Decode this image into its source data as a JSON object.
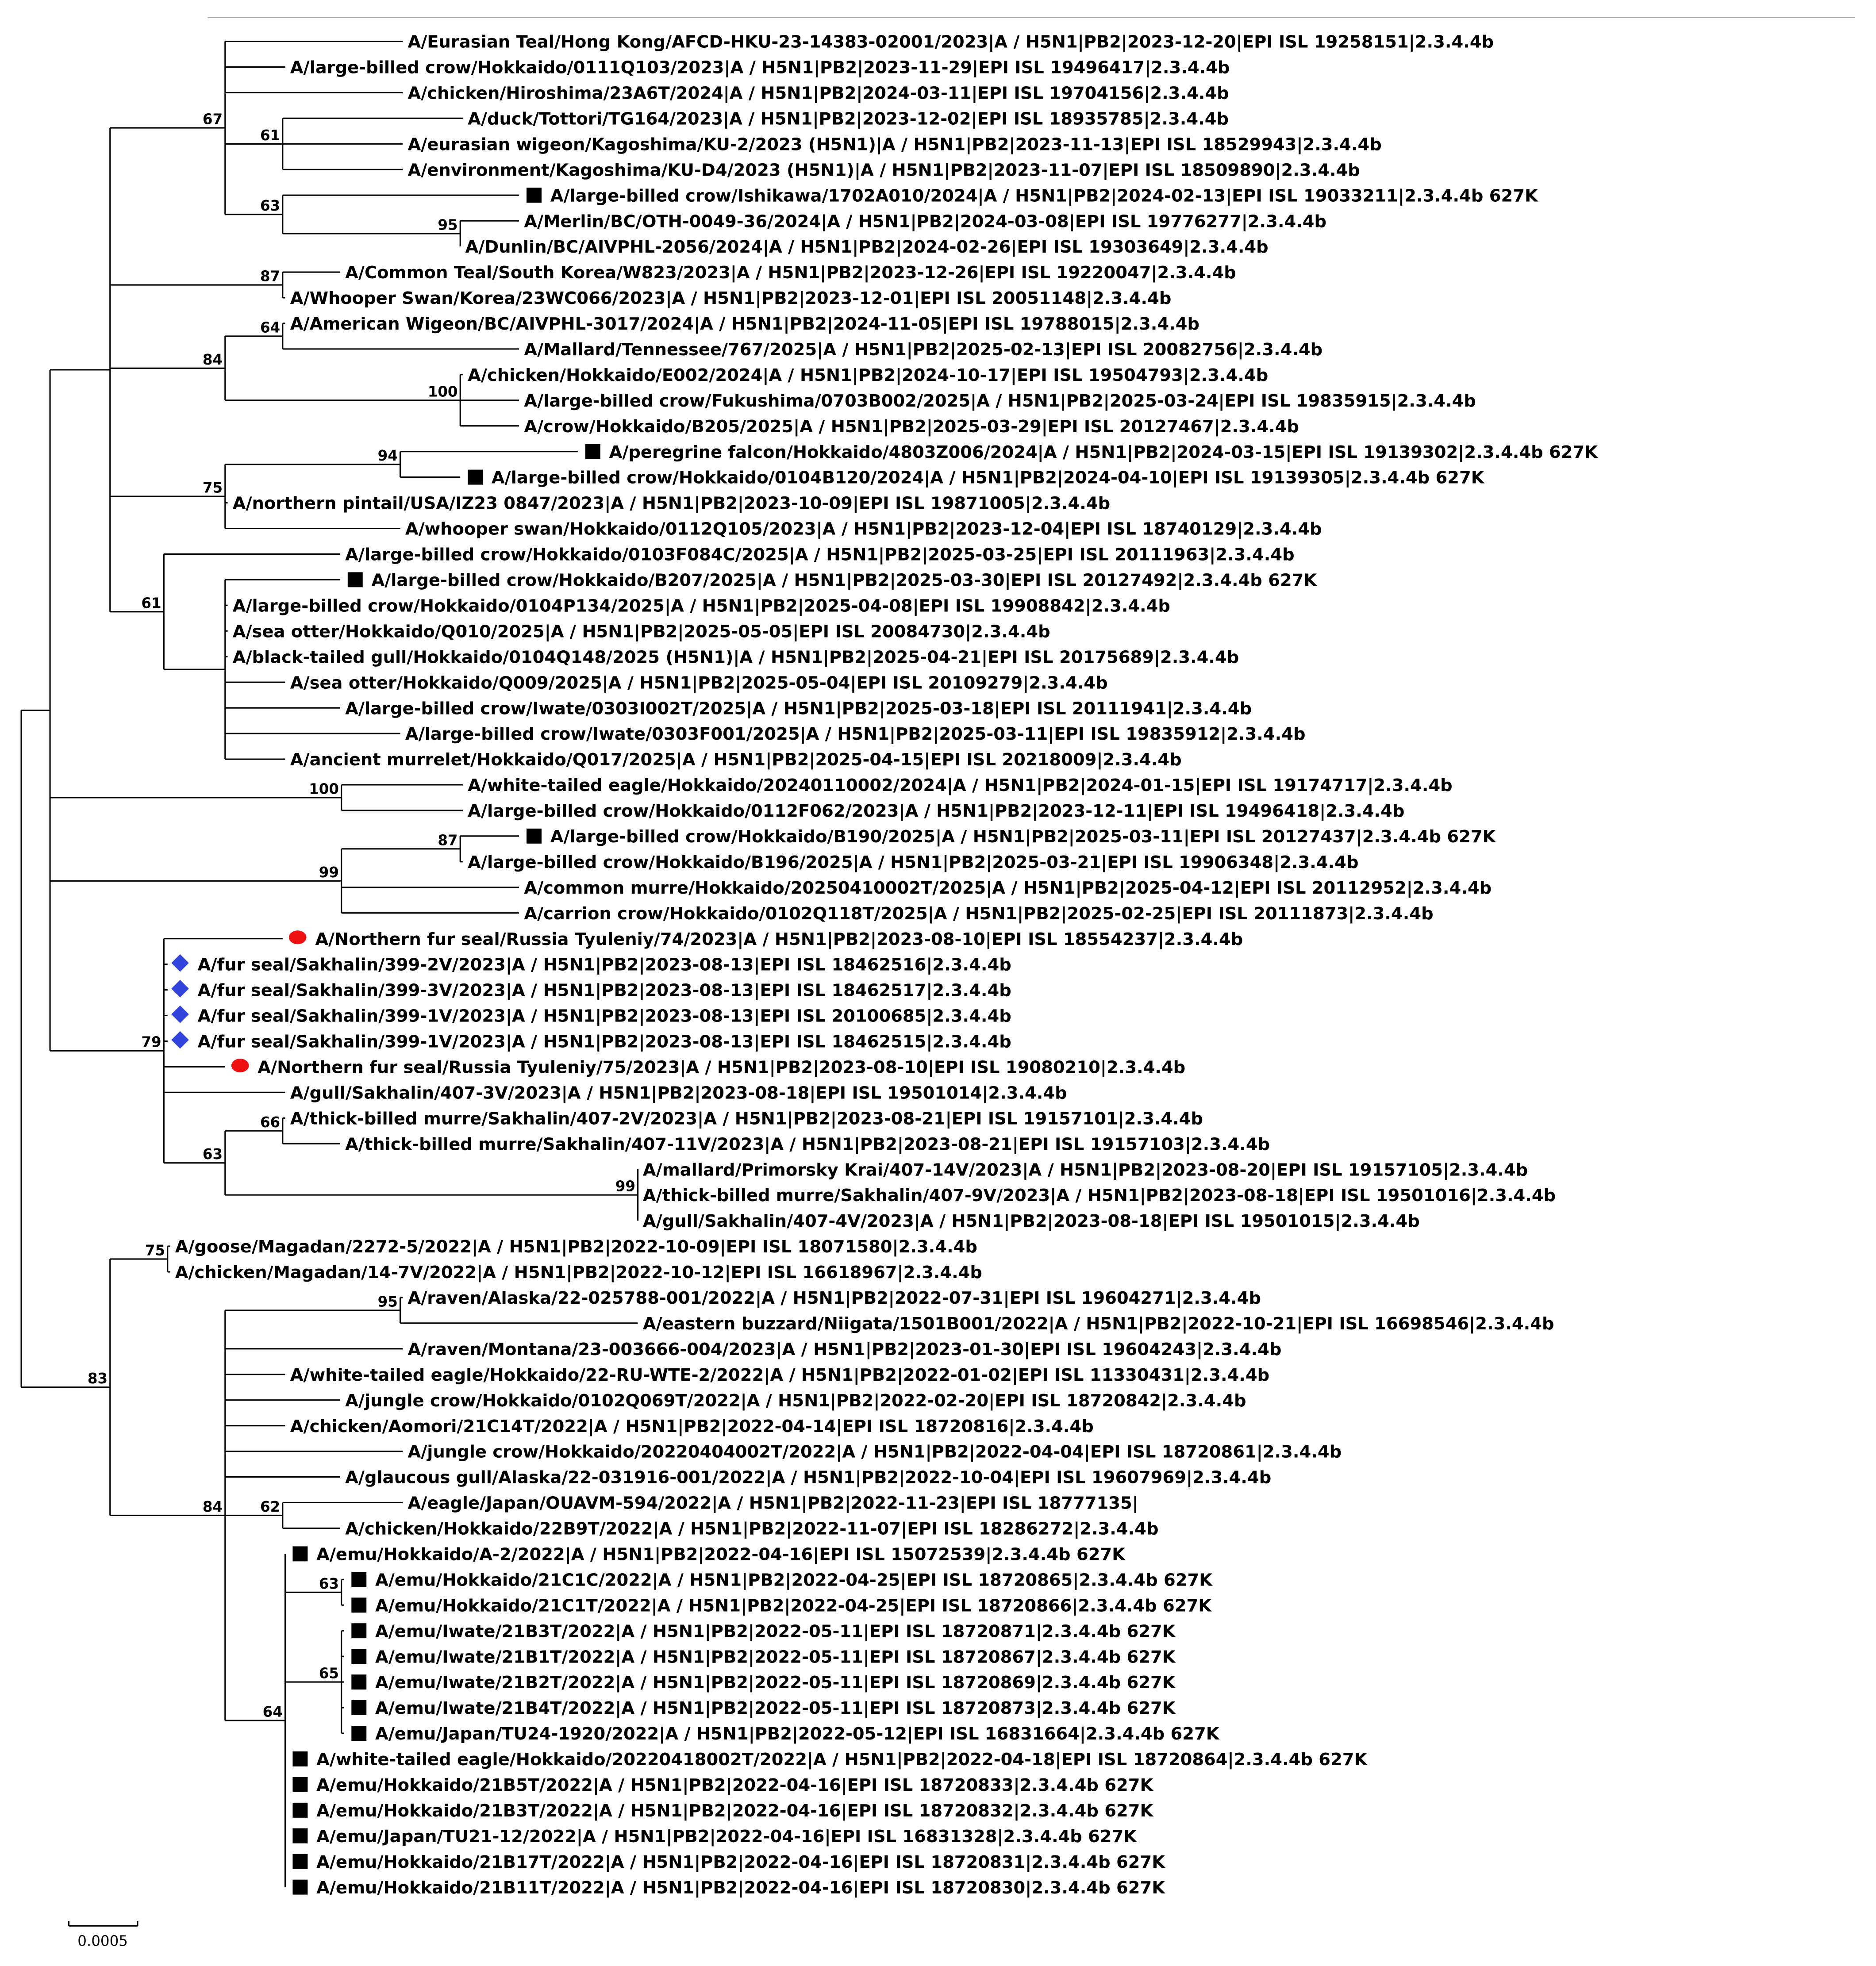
{
  "colors": {
    "branch": "#000000",
    "square_marker": "#000000",
    "circle_marker": "#ee1111",
    "diamond_marker": "#3344dd"
  },
  "leaves": [
    {
      "label": "A/Eurasian Teal/Hong Kong/AFCD-HKU-23-14383-02001/2023|A / H5N1|PB2|2023-12-20|EPI ISL 19258151|2.3.4.4b",
      "marker": "none"
    },
    {
      "label": "A/large-billed crow/Hokkaido/0111Q103/2023|A / H5N1|PB2|2023-11-29|EPI ISL 19496417|2.3.4.4b",
      "marker": "none"
    },
    {
      "label": "A/chicken/Hiroshima/23A6T/2024|A / H5N1|PB2|2024-03-11|EPI ISL 19704156|2.3.4.4b",
      "marker": "none"
    },
    {
      "label": "A/duck/Tottori/TG164/2023|A / H5N1|PB2|2023-12-02|EPI ISL 18935785|2.3.4.4b",
      "marker": "none"
    },
    {
      "label": "A/eurasian wigeon/Kagoshima/KU-2/2023 (H5N1)|A / H5N1|PB2|2023-11-13|EPI ISL 18529943|2.3.4.4b",
      "marker": "none"
    },
    {
      "label": "A/environment/Kagoshima/KU-D4/2023 (H5N1)|A / H5N1|PB2|2023-11-07|EPI ISL 18509890|2.3.4.4b",
      "marker": "none"
    },
    {
      "label": "A/large-billed crow/Ishikawa/1702A010/2024|A / H5N1|PB2|2024-02-13|EPI ISL 19033211|2.3.4.4b 627K",
      "marker": "square"
    },
    {
      "label": "A/Merlin/BC/OTH-0049-36/2024|A / H5N1|PB2|2024-03-08|EPI ISL 19776277|2.3.4.4b",
      "marker": "none"
    },
    {
      "label": "A/Dunlin/BC/AIVPHL-2056/2024|A / H5N1|PB2|2024-02-26|EPI ISL 19303649|2.3.4.4b",
      "marker": "none"
    },
    {
      "label": "A/Common Teal/South Korea/W823/2023|A / H5N1|PB2|2023-12-26|EPI ISL 19220047|2.3.4.4b",
      "marker": "none"
    },
    {
      "label": "A/Whooper Swan/Korea/23WC066/2023|A / H5N1|PB2|2023-12-01|EPI ISL 20051148|2.3.4.4b",
      "marker": "none"
    },
    {
      "label": "A/American Wigeon/BC/AIVPHL-3017/2024|A / H5N1|PB2|2024-11-05|EPI ISL 19788015|2.3.4.4b",
      "marker": "none"
    },
    {
      "label": "A/Mallard/Tennessee/767/2025|A / H5N1|PB2|2025-02-13|EPI ISL 20082756|2.3.4.4b",
      "marker": "none"
    },
    {
      "label": "A/chicken/Hokkaido/E002/2024|A / H5N1|PB2|2024-10-17|EPI ISL 19504793|2.3.4.4b",
      "marker": "none"
    },
    {
      "label": "A/large-billed crow/Fukushima/0703B002/2025|A / H5N1|PB2|2025-03-24|EPI ISL 19835915|2.3.4.4b",
      "marker": "none"
    },
    {
      "label": "A/crow/Hokkaido/B205/2025|A / H5N1|PB2|2025-03-29|EPI ISL 20127467|2.3.4.4b",
      "marker": "none"
    },
    {
      "label": "A/peregrine falcon/Hokkaido/4803Z006/2024|A / H5N1|PB2|2024-03-15|EPI ISL 19139302|2.3.4.4b 627K",
      "marker": "square"
    },
    {
      "label": "A/large-billed crow/Hokkaido/0104B120/2024|A / H5N1|PB2|2024-04-10|EPI ISL 19139305|2.3.4.4b 627K",
      "marker": "square"
    },
    {
      "label": "A/northern pintail/USA/IZ23 0847/2023|A / H5N1|PB2|2023-10-09|EPI ISL 19871005|2.3.4.4b",
      "marker": "none"
    },
    {
      "label": "A/whooper swan/Hokkaido/0112Q105/2023|A / H5N1|PB2|2023-12-04|EPI ISL 18740129|2.3.4.4b",
      "marker": "none"
    },
    {
      "label": "A/large-billed crow/Hokkaido/0103F084C/2025|A / H5N1|PB2|2025-03-25|EPI ISL 20111963|2.3.4.4b",
      "marker": "none"
    },
    {
      "label": "A/large-billed crow/Hokkaido/B207/2025|A / H5N1|PB2|2025-03-30|EPI ISL 20127492|2.3.4.4b 627K",
      "marker": "square"
    },
    {
      "label": "A/large-billed crow/Hokkaido/0104P134/2025|A / H5N1|PB2|2025-04-08|EPI ISL 19908842|2.3.4.4b",
      "marker": "none"
    },
    {
      "label": "A/sea otter/Hokkaido/Q010/2025|A / H5N1|PB2|2025-05-05|EPI ISL 20084730|2.3.4.4b",
      "marker": "none"
    },
    {
      "label": "A/black-tailed gull/Hokkaido/0104Q148/2025 (H5N1)|A / H5N1|PB2|2025-04-21|EPI ISL 20175689|2.3.4.4b",
      "marker": "none"
    },
    {
      "label": "A/sea otter/Hokkaido/Q009/2025|A / H5N1|PB2|2025-05-04|EPI ISL 20109279|2.3.4.4b",
      "marker": "none"
    },
    {
      "label": "A/large-billed crow/Iwate/0303I002T/2025|A / H5N1|PB2|2025-03-18|EPI ISL 20111941|2.3.4.4b",
      "marker": "none"
    },
    {
      "label": "A/large-billed crow/Iwate/0303F001/2025|A / H5N1|PB2|2025-03-11|EPI ISL 19835912|2.3.4.4b",
      "marker": "none"
    },
    {
      "label": "A/ancient murrelet/Hokkaido/Q017/2025|A / H5N1|PB2|2025-04-15|EPI ISL 20218009|2.3.4.4b",
      "marker": "none"
    },
    {
      "label": "A/white-tailed eagle/Hokkaido/20240110002/2024|A / H5N1|PB2|2024-01-15|EPI ISL 19174717|2.3.4.4b",
      "marker": "none"
    },
    {
      "label": "A/large-billed crow/Hokkaido/0112F062/2023|A / H5N1|PB2|2023-12-11|EPI ISL 19496418|2.3.4.4b",
      "marker": "none"
    },
    {
      "label": "A/large-billed crow/Hokkaido/B190/2025|A / H5N1|PB2|2025-03-11|EPI ISL 20127437|2.3.4.4b 627K",
      "marker": "square"
    },
    {
      "label": "A/large-billed crow/Hokkaido/B196/2025|A / H5N1|PB2|2025-03-21|EPI ISL 19906348|2.3.4.4b",
      "marker": "none"
    },
    {
      "label": "A/common murre/Hokkaido/20250410002T/2025|A / H5N1|PB2|2025-04-12|EPI ISL 20112952|2.3.4.4b",
      "marker": "none"
    },
    {
      "label": "A/carrion crow/Hokkaido/0102Q118T/2025|A / H5N1|PB2|2025-02-25|EPI ISL 20111873|2.3.4.4b",
      "marker": "none"
    },
    {
      "label": "A/Northern fur seal/Russia Tyuleniy/74/2023|A / H5N1|PB2|2023-08-10|EPI ISL 18554237|2.3.4.4b",
      "marker": "circle"
    },
    {
      "label": "A/fur seal/Sakhalin/399-2V/2023|A / H5N1|PB2|2023-08-13|EPI ISL 18462516|2.3.4.4b",
      "marker": "diamond"
    },
    {
      "label": "A/fur seal/Sakhalin/399-3V/2023|A / H5N1|PB2|2023-08-13|EPI ISL 18462517|2.3.4.4b",
      "marker": "diamond"
    },
    {
      "label": "A/fur seal/Sakhalin/399-1V/2023|A / H5N1|PB2|2023-08-13|EPI ISL 20100685|2.3.4.4b",
      "marker": "diamond"
    },
    {
      "label": "A/fur seal/Sakhalin/399-1V/2023|A / H5N1|PB2|2023-08-13|EPI ISL 18462515|2.3.4.4b",
      "marker": "diamond"
    },
    {
      "label": "A/Northern fur seal/Russia Tyuleniy/75/2023|A / H5N1|PB2|2023-08-10|EPI ISL 19080210|2.3.4.4b",
      "marker": "circle"
    },
    {
      "label": "A/gull/Sakhalin/407-3V/2023|A / H5N1|PB2|2023-08-18|EPI ISL 19501014|2.3.4.4b",
      "marker": "none"
    },
    {
      "label": "A/thick-billed murre/Sakhalin/407-2V/2023|A / H5N1|PB2|2023-08-21|EPI ISL 19157101|2.3.4.4b",
      "marker": "none"
    },
    {
      "label": "A/thick-billed murre/Sakhalin/407-11V/2023|A / H5N1|PB2|2023-08-21|EPI ISL 19157103|2.3.4.4b",
      "marker": "none"
    },
    {
      "label": "A/mallard/Primorsky Krai/407-14V/2023|A / H5N1|PB2|2023-08-20|EPI ISL 19157105|2.3.4.4b",
      "marker": "none"
    },
    {
      "label": "A/thick-billed murre/Sakhalin/407-9V/2023|A / H5N1|PB2|2023-08-18|EPI ISL 19501016|2.3.4.4b",
      "marker": "none"
    },
    {
      "label": "A/gull/Sakhalin/407-4V/2023|A / H5N1|PB2|2023-08-18|EPI ISL 19501015|2.3.4.4b",
      "marker": "none"
    },
    {
      "label": "A/goose/Magadan/2272-5/2022|A / H5N1|PB2|2022-10-09|EPI ISL 18071580|2.3.4.4b",
      "marker": "none"
    },
    {
      "label": "A/chicken/Magadan/14-7V/2022|A / H5N1|PB2|2022-10-12|EPI ISL 16618967|2.3.4.4b",
      "marker": "none"
    },
    {
      "label": "A/raven/Alaska/22-025788-001/2022|A / H5N1|PB2|2022-07-31|EPI ISL 19604271|2.3.4.4b",
      "marker": "none"
    },
    {
      "label": "A/eastern buzzard/Niigata/1501B001/2022|A / H5N1|PB2|2022-10-21|EPI ISL 16698546|2.3.4.4b",
      "marker": "none"
    },
    {
      "label": "A/raven/Montana/23-003666-004/2023|A / H5N1|PB2|2023-01-30|EPI ISL 19604243|2.3.4.4b",
      "marker": "none"
    },
    {
      "label": "A/white-tailed eagle/Hokkaido/22-RU-WTE-2/2022|A / H5N1|PB2|2022-01-02|EPI ISL 11330431|2.3.4.4b",
      "marker": "none"
    },
    {
      "label": "A/jungle crow/Hokkaido/0102Q069T/2022|A / H5N1|PB2|2022-02-20|EPI ISL 18720842|2.3.4.4b",
      "marker": "none"
    },
    {
      "label": "A/chicken/Aomori/21C14T/2022|A / H5N1|PB2|2022-04-14|EPI ISL 18720816|2.3.4.4b",
      "marker": "none"
    },
    {
      "label": "A/jungle crow/Hokkaido/20220404002T/2022|A / H5N1|PB2|2022-04-04|EPI ISL 18720861|2.3.4.4b",
      "marker": "none"
    },
    {
      "label": "A/glaucous gull/Alaska/22-031916-001/2022|A / H5N1|PB2|2022-10-04|EPI ISL 19607969|2.3.4.4b",
      "marker": "none"
    },
    {
      "label": "A/eagle/Japan/OUAVM-594/2022|A / H5N1|PB2|2022-11-23|EPI ISL 18777135|",
      "marker": "none"
    },
    {
      "label": "A/chicken/Hokkaido/22B9T/2022|A / H5N1|PB2|2022-11-07|EPI ISL 18286272|2.3.4.4b",
      "marker": "none"
    },
    {
      "label": "A/emu/Hokkaido/A-2/2022|A / H5N1|PB2|2022-04-16|EPI ISL 15072539|2.3.4.4b 627K",
      "marker": "square"
    },
    {
      "label": "A/emu/Hokkaido/21C1C/2022|A / H5N1|PB2|2022-04-25|EPI ISL 18720865|2.3.4.4b 627K",
      "marker": "square"
    },
    {
      "label": "A/emu/Hokkaido/21C1T/2022|A / H5N1|PB2|2022-04-25|EPI ISL 18720866|2.3.4.4b 627K",
      "marker": "square"
    },
    {
      "label": "A/emu/Iwate/21B3T/2022|A / H5N1|PB2|2022-05-11|EPI ISL 18720871|2.3.4.4b 627K",
      "marker": "square"
    },
    {
      "label": "A/emu/Iwate/21B1T/2022|A / H5N1|PB2|2022-05-11|EPI ISL 18720867|2.3.4.4b 627K",
      "marker": "square"
    },
    {
      "label": "A/emu/Iwate/21B2T/2022|A / H5N1|PB2|2022-05-11|EPI ISL 18720869|2.3.4.4b 627K",
      "marker": "square"
    },
    {
      "label": "A/emu/Iwate/21B4T/2022|A / H5N1|PB2|2022-05-11|EPI ISL 18720873|2.3.4.4b 627K",
      "marker": "square"
    },
    {
      "label": "A/emu/Japan/TU24-1920/2022|A / H5N1|PB2|2022-05-12|EPI ISL 16831664|2.3.4.4b 627K",
      "marker": "square"
    },
    {
      "label": "A/white-tailed eagle/Hokkaido/20220418002T/2022|A / H5N1|PB2|2022-04-18|EPI ISL 18720864|2.3.4.4b 627K",
      "marker": "square"
    },
    {
      "label": "A/emu/Hokkaido/21B5T/2022|A / H5N1|PB2|2022-04-16|EPI ISL 18720833|2.3.4.4b 627K",
      "marker": "square"
    },
    {
      "label": "A/emu/Hokkaido/21B3T/2022|A / H5N1|PB2|2022-04-16|EPI ISL 18720832|2.3.4.4b 627K",
      "marker": "square"
    },
    {
      "label": "A/emu/Japan/TU21-12/2022|A / H5N1|PB2|2022-04-16|EPI ISL 16831328|2.3.4.4b 627K",
      "marker": "square"
    },
    {
      "label": "A/emu/Hokkaido/21B17T/2022|A / H5N1|PB2|2022-04-16|EPI ISL 18720831|2.3.4.4b 627K",
      "marker": "square"
    },
    {
      "label": "A/emu/Hokkaido/21B11T/2022|A / H5N1|PB2|2022-04-16|EPI ISL 18720830|2.3.4.4b 627K",
      "marker": "square"
    }
  ],
  "bootstrap": {
    "C67": "67",
    "N61a": "61",
    "N63a": "63",
    "N95a": "95",
    "C87": "87",
    "C84": "84",
    "N64a": "64",
    "N100a": "100",
    "C75": "75",
    "N94": "94",
    "C61": "61",
    "C100": "100",
    "C99": "99",
    "N87b": "87",
    "C79": "79",
    "N63c": "63",
    "N66": "66",
    "N99c": "99",
    "B": "83",
    "C75b": "75",
    "C84b": "84",
    "N95b": "95",
    "N62": "62",
    "N64": "64",
    "N63d": "63",
    "N65": "65"
  },
  "scale_bar": {
    "label": "0.0005"
  }
}
